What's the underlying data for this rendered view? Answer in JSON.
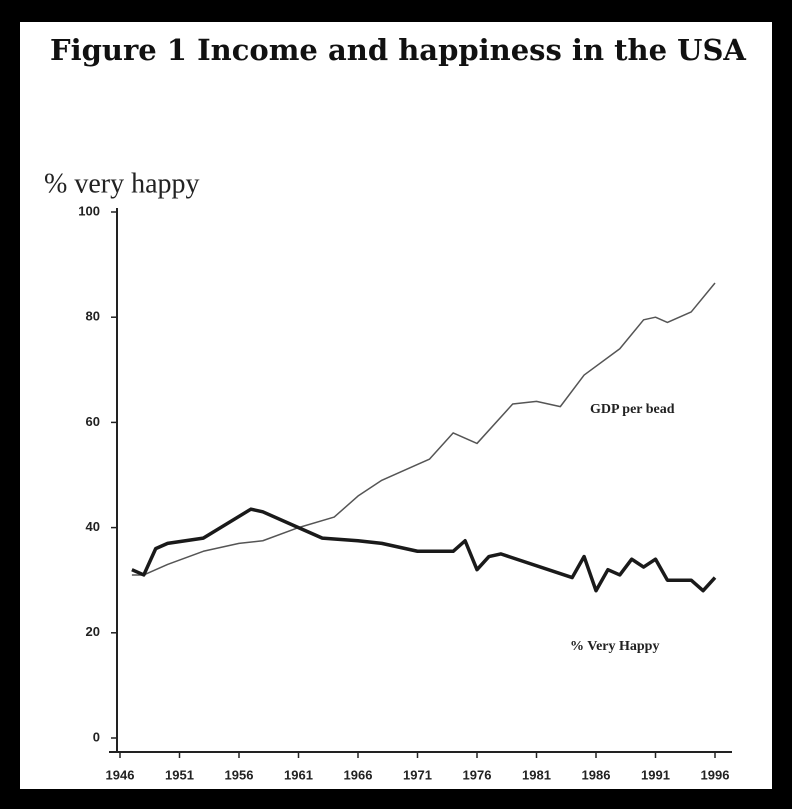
{
  "chart_data": {
    "type": "line",
    "title": "Figure 1 Income and happiness in the USA",
    "ylabel": "% very happy",
    "xlim": [
      1946,
      1996
    ],
    "xticks": [
      1946,
      1951,
      1956,
      1961,
      1966,
      1971,
      1976,
      1981,
      1986,
      1991,
      1996
    ],
    "ylim": [
      0,
      100
    ],
    "yticks": [
      0,
      20,
      40,
      60,
      80,
      100
    ],
    "grid": false,
    "series": [
      {
        "name": "GDP per bead",
        "color": "#555555",
        "width": 1.5,
        "x": [
          1947,
          1948,
          1950,
          1953,
          1956,
          1958,
          1961,
          1964,
          1966,
          1968,
          1971,
          1972,
          1974,
          1976,
          1979,
          1981,
          1983,
          1985,
          1988,
          1990,
          1991,
          1992,
          1994,
          1996
        ],
        "values": [
          31,
          31,
          33,
          35.5,
          37,
          37.5,
          40,
          42,
          46,
          49,
          52,
          53,
          58,
          56,
          63.5,
          64,
          63,
          69,
          74,
          79.5,
          80,
          79,
          81,
          86.5
        ]
      },
      {
        "name": "% Very Happy",
        "color": "#1a1a1a",
        "width": 3.5,
        "x": [
          1947,
          1948,
          1949,
          1950,
          1953,
          1957,
          1958,
          1961,
          1963,
          1966,
          1968,
          1971,
          1974,
          1975,
          1976,
          1977,
          1978,
          1984,
          1985,
          1986,
          1987,
          1988,
          1989,
          1990,
          1991,
          1992,
          1994,
          1995,
          1996
        ],
        "values": [
          32,
          31,
          36,
          37,
          38,
          43.5,
          43,
          40,
          38,
          37.5,
          37,
          35.5,
          35.5,
          37.5,
          32,
          34.5,
          35,
          30.5,
          34.5,
          28,
          32,
          31,
          34,
          32.5,
          34,
          30,
          30,
          28,
          30.5
        ]
      }
    ]
  }
}
